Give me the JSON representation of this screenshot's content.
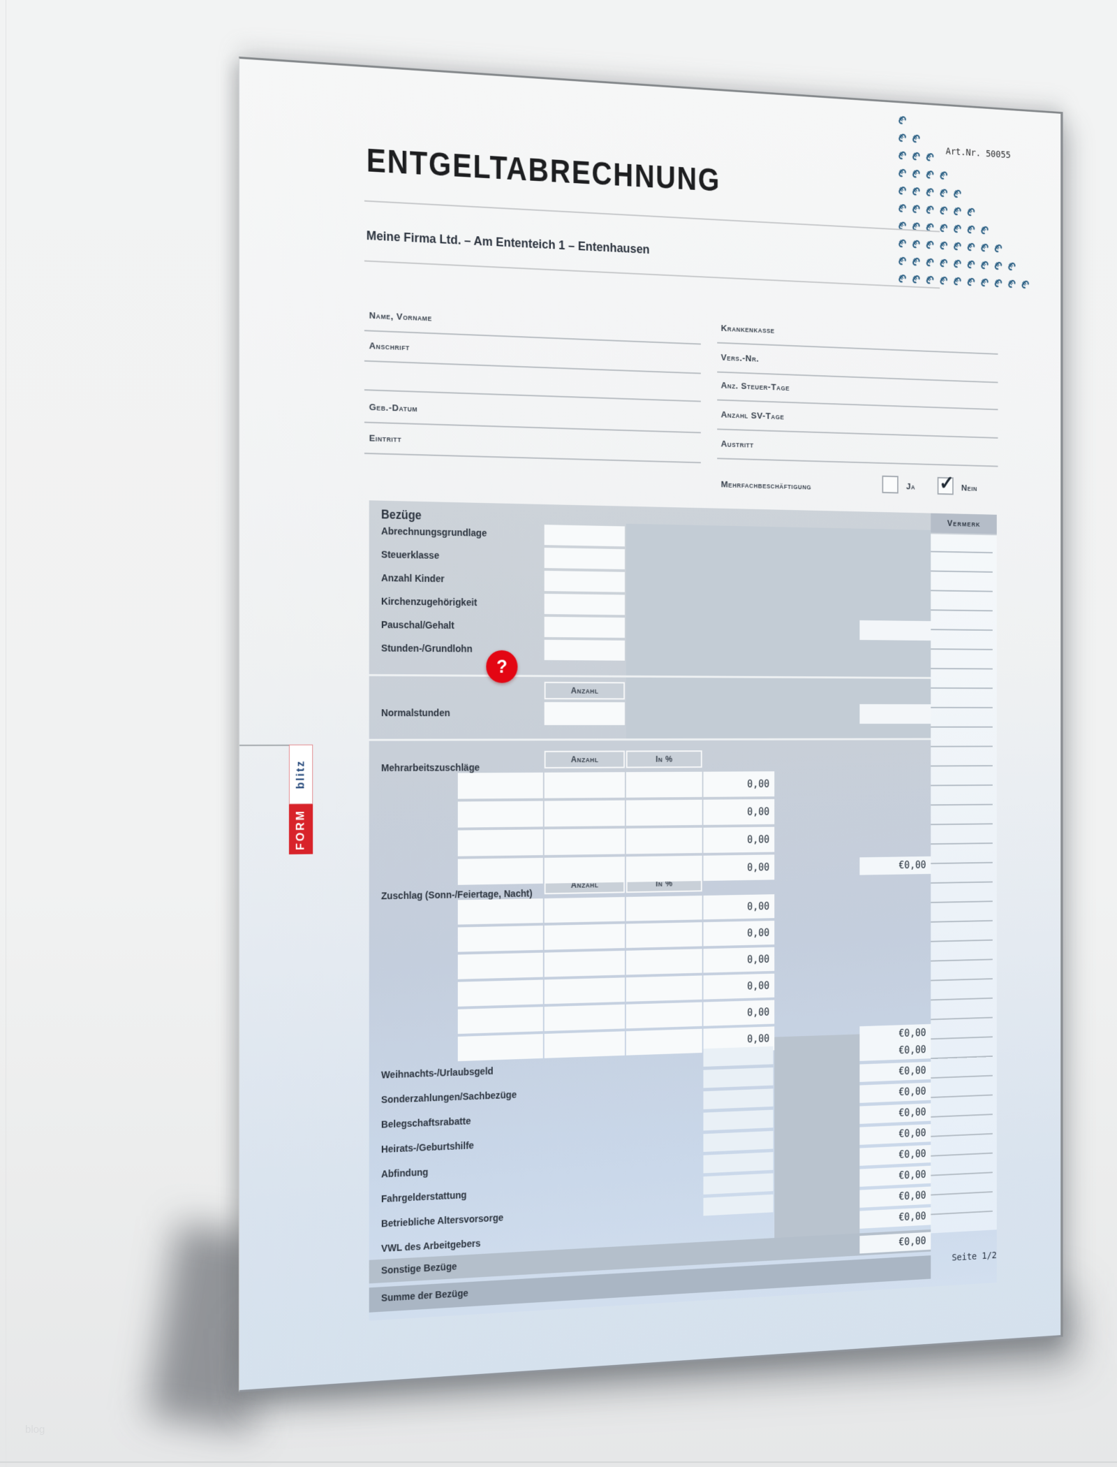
{
  "document": {
    "title": "ENTGELTABRECHNUNG",
    "company_line": "Meine Firma Ltd. – Am Ententeich 1 – Entenhausen",
    "art_nr": "Art.Nr. 50055",
    "page_indicator": "Seite 1/2",
    "watermark_symbol": "€",
    "logo": {
      "part1": "FORM",
      "part2": "blitz"
    },
    "corner_mark": "blog"
  },
  "employee_fields": {
    "left": [
      "Name, Vorname",
      "Anschrift",
      "",
      "Geb.-Datum",
      "Eintritt"
    ],
    "right": [
      "Krankenkasse",
      "Vers.-Nr.",
      "Anz. Steuer-Tage",
      "Anzahl SV-Tage",
      "Austritt"
    ],
    "multiple_employment": {
      "label": "Mehrfachbeschäftigung",
      "yes_label": "Ja",
      "no_label": "Nein",
      "checked": "Nein",
      "checkmark": "✓"
    }
  },
  "bezuege": {
    "section_title": "Bezüge",
    "vermerk_header": "Vermerk",
    "basic_rows": [
      "Abrechnungsgrundlage",
      "Steuerklasse",
      "Anzahl Kinder",
      "Kirchenzugehörigkeit",
      "Pauschal/Gehalt",
      "Stunden-/Grundlohn"
    ],
    "help_icon": "?",
    "normalstunden": {
      "label": "Normalstunden",
      "col_header": "Anzahl"
    },
    "mehrarbeit": {
      "label": "Mehrarbeitszuschläge",
      "col_anzahl": "Anzahl",
      "col_percent": "In %",
      "amounts": [
        "0,00",
        "0,00",
        "0,00",
        "0,00"
      ],
      "total": "€0,00"
    },
    "zuschlag": {
      "label": "Zuschlag (Sonn-/Feiertage, Nacht)",
      "col_anzahl": "Anzahl",
      "col_percent": "In %",
      "amounts": [
        "0,00",
        "0,00",
        "0,00",
        "0,00",
        "0,00",
        "0,00"
      ],
      "total": "€0,00"
    },
    "extra_rows": {
      "labels": [
        "",
        "Weihnachts-/Urlaubsgeld",
        "Sonderzahlungen/Sachbezüge",
        "Belegschaftsrabatte",
        "Heirats-/Geburtshilfe",
        "Abfindung",
        "Fahrgelderstattung",
        "Betriebliche Altersvorsorge",
        "VWL des Arbeitgebers"
      ],
      "amounts": [
        "€0,00",
        "€0,00",
        "€0,00",
        "€0,00",
        "€0,00",
        "€0,00",
        "€0,00",
        "€0,00",
        "€0,00"
      ]
    },
    "sonstige": {
      "label": "Sonstige Bezüge",
      "amount": "€0,00"
    },
    "summe": {
      "label": "Summe der Bezüge"
    }
  },
  "colors": {
    "accent_red": "#e30613",
    "euro_blue": "#2d6185",
    "logo_blue": "#274a7c",
    "logo_red": "#d8232a"
  }
}
